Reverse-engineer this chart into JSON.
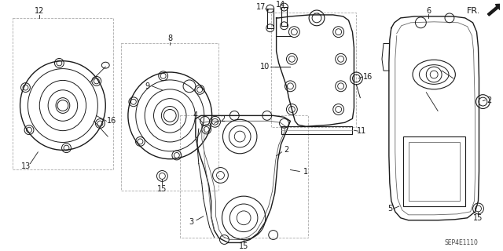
{
  "bg_color": "#ffffff",
  "fg_color": "#1a1a1a",
  "gray_color": "#aaaaaa",
  "fig_width": 6.4,
  "fig_height": 3.2,
  "dpi": 100,
  "watermark": "SEP4E1110",
  "fr_label": "FR."
}
